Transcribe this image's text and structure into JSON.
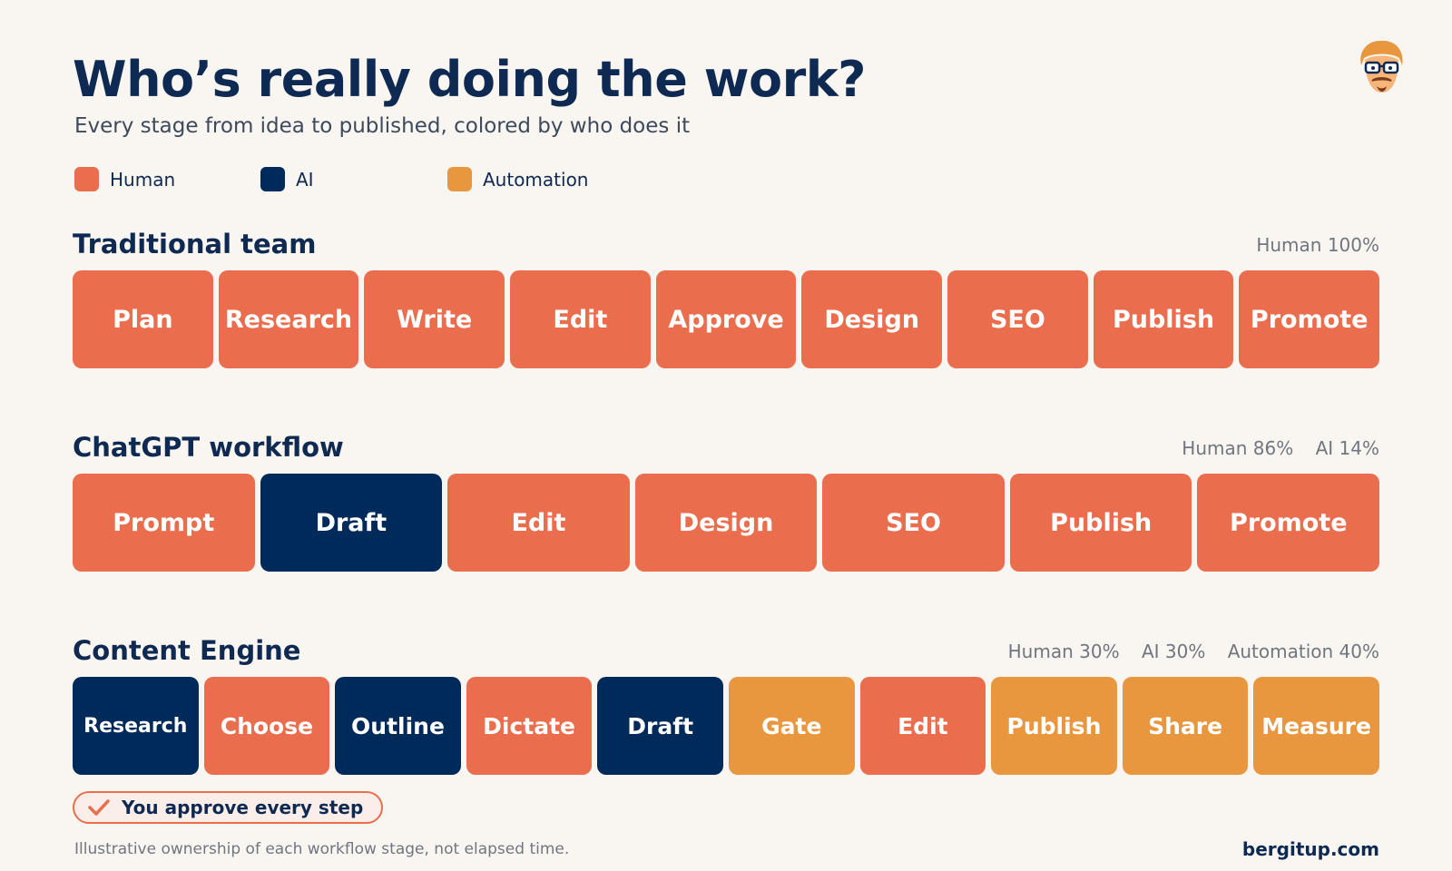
{
  "title": "Who’s really doing the work?",
  "subtitle": "Every stage from idea to published, colored by who does it",
  "colors": {
    "human": "#ea6e4d",
    "ai": "#002a5a",
    "automation": "#e8973f"
  },
  "legend": [
    {
      "label": "Human",
      "type": "human"
    },
    {
      "label": "AI",
      "type": "ai"
    },
    {
      "label": "Automation",
      "type": "automation"
    }
  ],
  "sections": [
    {
      "title": "Traditional team",
      "stats": [
        "Human 100%"
      ],
      "stages": [
        {
          "label": "Plan",
          "type": "human"
        },
        {
          "label": "Research",
          "type": "human"
        },
        {
          "label": "Write",
          "type": "human"
        },
        {
          "label": "Edit",
          "type": "human"
        },
        {
          "label": "Approve",
          "type": "human"
        },
        {
          "label": "Design",
          "type": "human"
        },
        {
          "label": "SEO",
          "type": "human"
        },
        {
          "label": "Publish",
          "type": "human"
        },
        {
          "label": "Promote",
          "type": "human"
        }
      ]
    },
    {
      "title": "ChatGPT workflow",
      "stats": [
        "Human 86%",
        "AI 14%"
      ],
      "stages": [
        {
          "label": "Prompt",
          "type": "human"
        },
        {
          "label": "Draft",
          "type": "ai"
        },
        {
          "label": "Edit",
          "type": "human"
        },
        {
          "label": "Design",
          "type": "human"
        },
        {
          "label": "SEO",
          "type": "human"
        },
        {
          "label": "Publish",
          "type": "human"
        },
        {
          "label": "Promote",
          "type": "human"
        }
      ]
    },
    {
      "title": "Content Engine",
      "stats": [
        "Human 30%",
        "AI 30%",
        "Automation 40%"
      ],
      "stages": [
        {
          "label": "Research",
          "type": "ai"
        },
        {
          "label": "Choose",
          "type": "human"
        },
        {
          "label": "Outline",
          "type": "ai"
        },
        {
          "label": "Dictate",
          "type": "human"
        },
        {
          "label": "Draft",
          "type": "ai"
        },
        {
          "label": "Gate",
          "type": "automation"
        },
        {
          "label": "Edit",
          "type": "human"
        },
        {
          "label": "Publish",
          "type": "automation"
        },
        {
          "label": "Share",
          "type": "automation"
        },
        {
          "label": "Measure",
          "type": "automation"
        }
      ]
    }
  ],
  "badge": {
    "text": "You approve every step",
    "icon": "check-icon"
  },
  "footnote": "Illustrative ownership of each workflow stage, not elapsed time.",
  "site": "bergitup.com",
  "avatar_icon": "avatar-icon"
}
